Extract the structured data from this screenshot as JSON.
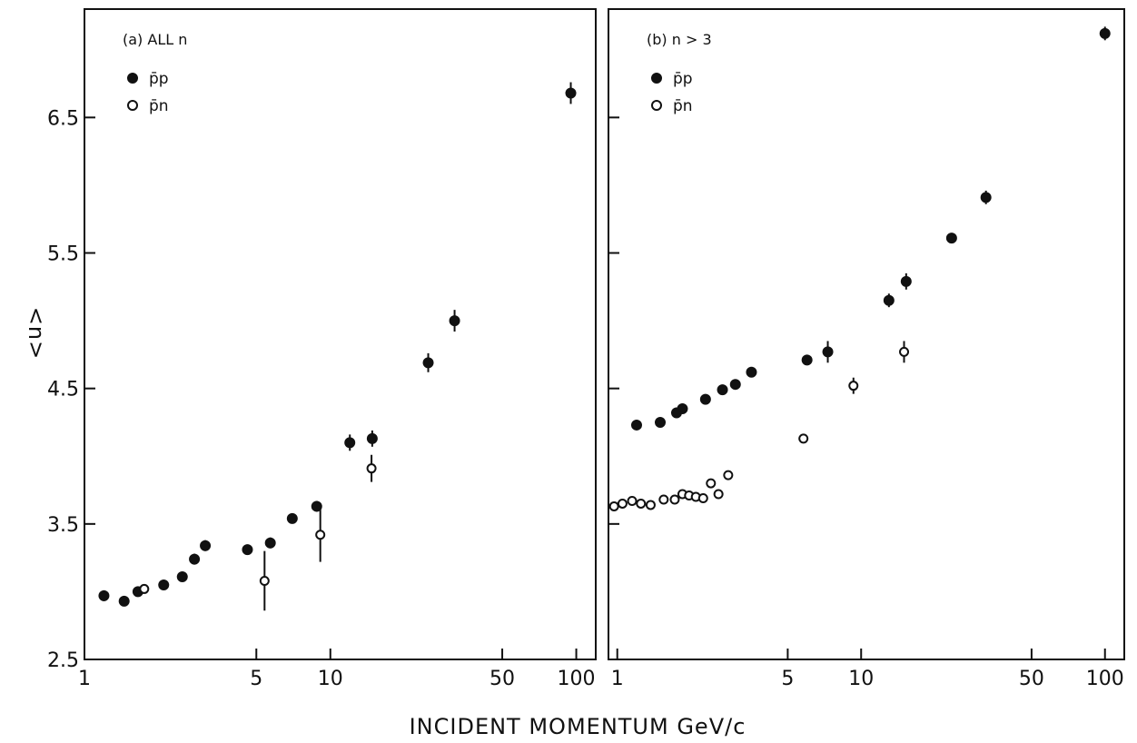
{
  "figure": {
    "xlabel": "INCIDENT   MOMENTUM   GeV/c",
    "ylabel": "<n>"
  },
  "chart_data": [
    {
      "type": "scatter",
      "panel_label": "(a)   ALL  n",
      "xscale": "log",
      "xlim": [
        1,
        120
      ],
      "ylim": [
        2.5,
        7.3
      ],
      "x_ticks": [
        1,
        5,
        10,
        50,
        100
      ],
      "x_tick_labels": [
        "1",
        "5",
        "10",
        "50",
        "100"
      ],
      "y_ticks": [
        2.5,
        3.5,
        4.5,
        5.5,
        6.5
      ],
      "y_tick_labels": [
        "2.5",
        "3.5",
        "4.5",
        "5.5",
        "6.5"
      ],
      "legend": {
        "placement": "top-left",
        "entries": [
          "p̄p",
          "p̄n"
        ]
      },
      "series": [
        {
          "name": "p̄p",
          "marker": "filled-circle",
          "points": [
            {
              "x": 1.2,
              "y": 2.97,
              "err": 0.04
            },
            {
              "x": 1.45,
              "y": 2.93,
              "err": 0.03
            },
            {
              "x": 1.65,
              "y": 3.0,
              "err": 0.03
            },
            {
              "x": 2.1,
              "y": 3.05,
              "err": 0.03
            },
            {
              "x": 2.5,
              "y": 3.11,
              "err": 0.03
            },
            {
              "x": 2.8,
              "y": 3.24,
              "err": 0.04
            },
            {
              "x": 3.1,
              "y": 3.34,
              "err": 0.04
            },
            {
              "x": 4.6,
              "y": 3.31,
              "err": 0.03
            },
            {
              "x": 5.7,
              "y": 3.36,
              "err": 0.04
            },
            {
              "x": 7.0,
              "y": 3.54,
              "err": 0.03
            },
            {
              "x": 8.8,
              "y": 3.63,
              "err": 0.04
            },
            {
              "x": 12.0,
              "y": 4.1,
              "err": 0.06
            },
            {
              "x": 14.8,
              "y": 4.13,
              "err": 0.06
            },
            {
              "x": 25.0,
              "y": 4.69,
              "err": 0.07
            },
            {
              "x": 32.0,
              "y": 5.0,
              "err": 0.08
            },
            {
              "x": 95.0,
              "y": 6.68,
              "err": 0.08
            }
          ]
        },
        {
          "name": "p̄n",
          "marker": "open-circle",
          "points": [
            {
              "x": 1.75,
              "y": 3.02,
              "err": 0.02
            },
            {
              "x": 5.4,
              "y": 3.08,
              "err": 0.22
            },
            {
              "x": 9.1,
              "y": 3.42,
              "err": 0.2
            },
            {
              "x": 14.7,
              "y": 3.91,
              "err": 0.1
            }
          ]
        }
      ]
    },
    {
      "type": "scatter",
      "panel_label": "(b)   n > 3",
      "xscale": "log",
      "xlim": [
        0.92,
        120
      ],
      "ylim": [
        2.5,
        7.3
      ],
      "x_ticks": [
        1,
        5,
        10,
        50,
        100
      ],
      "x_tick_labels": [
        "1",
        "5",
        "10",
        "50",
        "100"
      ],
      "y_ticks": [
        2.5,
        3.5,
        4.5,
        5.5,
        6.5
      ],
      "y_tick_labels": [],
      "legend": {
        "placement": "top-left",
        "entries": [
          "p̄p",
          "p̄n"
        ]
      },
      "series": [
        {
          "name": "p̄p",
          "marker": "filled-circle",
          "points": [
            {
              "x": 1.2,
              "y": 4.23,
              "err": 0.02
            },
            {
              "x": 1.5,
              "y": 4.25,
              "err": 0.02
            },
            {
              "x": 1.75,
              "y": 4.32,
              "err": 0.02
            },
            {
              "x": 1.85,
              "y": 4.35,
              "err": 0.02
            },
            {
              "x": 2.3,
              "y": 4.42,
              "err": 0.02
            },
            {
              "x": 2.7,
              "y": 4.49,
              "err": 0.02
            },
            {
              "x": 3.05,
              "y": 4.53,
              "err": 0.02
            },
            {
              "x": 3.55,
              "y": 4.62,
              "err": 0.02
            },
            {
              "x": 6.0,
              "y": 4.71,
              "err": 0.03
            },
            {
              "x": 7.3,
              "y": 4.77,
              "err": 0.08
            },
            {
              "x": 13.0,
              "y": 5.15,
              "err": 0.05
            },
            {
              "x": 15.3,
              "y": 5.29,
              "err": 0.06
            },
            {
              "x": 23.5,
              "y": 5.61,
              "err": 0.03
            },
            {
              "x": 32.5,
              "y": 5.91,
              "err": 0.05
            },
            {
              "x": 100.0,
              "y": 7.12,
              "err": 0.05
            }
          ]
        },
        {
          "name": "p̄n",
          "marker": "open-circle",
          "points": [
            {
              "x": 0.97,
              "y": 3.63,
              "err": 0.01
            },
            {
              "x": 1.05,
              "y": 3.65,
              "err": 0.01
            },
            {
              "x": 1.15,
              "y": 3.67,
              "err": 0.01
            },
            {
              "x": 1.25,
              "y": 3.65,
              "err": 0.01
            },
            {
              "x": 1.37,
              "y": 3.64,
              "err": 0.01
            },
            {
              "x": 1.55,
              "y": 3.68,
              "err": 0.01
            },
            {
              "x": 1.72,
              "y": 3.68,
              "err": 0.01
            },
            {
              "x": 1.85,
              "y": 3.72,
              "err": 0.01
            },
            {
              "x": 1.97,
              "y": 3.71,
              "err": 0.01
            },
            {
              "x": 2.1,
              "y": 3.7,
              "err": 0.01
            },
            {
              "x": 2.25,
              "y": 3.69,
              "err": 0.01
            },
            {
              "x": 2.42,
              "y": 3.8,
              "err": 0.01
            },
            {
              "x": 2.6,
              "y": 3.72,
              "err": 0.02
            },
            {
              "x": 2.85,
              "y": 3.86,
              "err": 0.01
            },
            {
              "x": 5.8,
              "y": 4.13,
              "err": 0.03
            },
            {
              "x": 9.3,
              "y": 4.52,
              "err": 0.06
            },
            {
              "x": 15.0,
              "y": 4.77,
              "err": 0.08
            }
          ]
        }
      ]
    }
  ]
}
